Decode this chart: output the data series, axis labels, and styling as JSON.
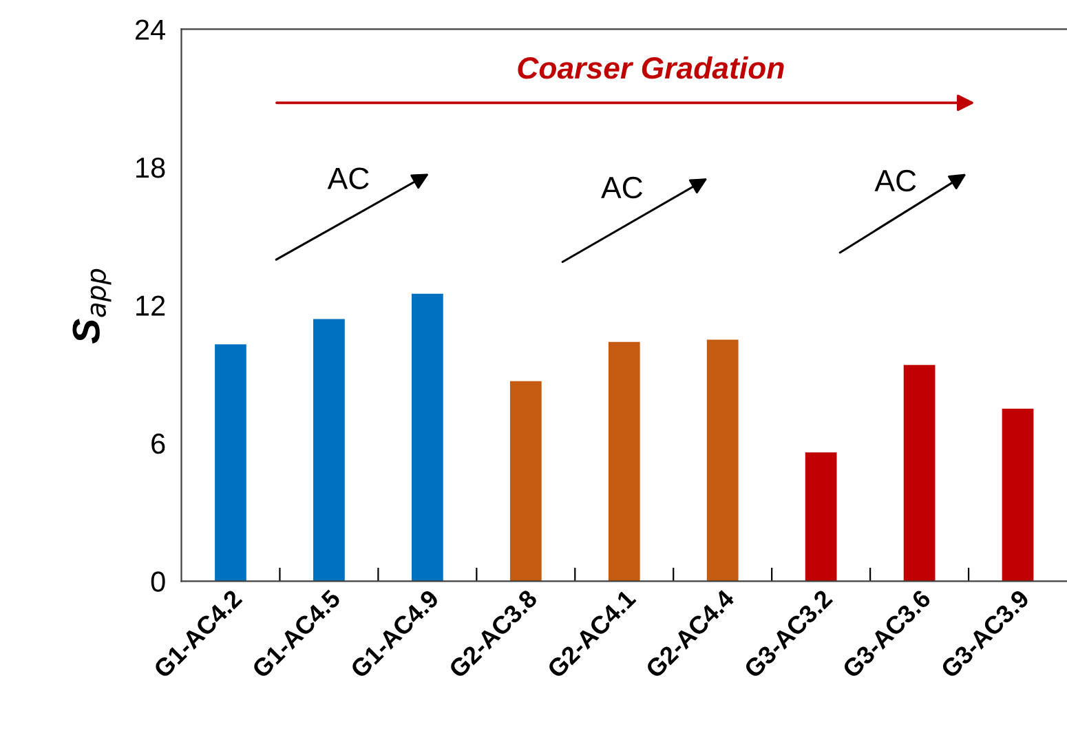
{
  "chart_data": {
    "type": "bar",
    "categories": [
      "G1-AC4.2",
      "G1-AC4.5",
      "G1-AC4.9",
      "G2-AC3.8",
      "G2-AC4.1",
      "G2-AC4.4",
      "G3-AC3.2",
      "G3-AC3.6",
      "G3-AC3.9"
    ],
    "values": [
      10.3,
      11.4,
      12.5,
      8.7,
      10.4,
      10.5,
      5.6,
      9.4,
      7.5
    ],
    "colors": [
      "#0070c0",
      "#0070c0",
      "#0070c0",
      "#c55a11",
      "#c55a11",
      "#c55a11",
      "#c00000",
      "#c00000",
      "#c00000"
    ],
    "ylabel": "S$_{app}$",
    "ylim": [
      0,
      24
    ],
    "yticks": [
      0,
      6,
      12,
      18,
      24
    ],
    "annotations": [
      "Coarser Gradation",
      "AC",
      "AC",
      "AC"
    ],
    "grid": false,
    "legend": false
  }
}
